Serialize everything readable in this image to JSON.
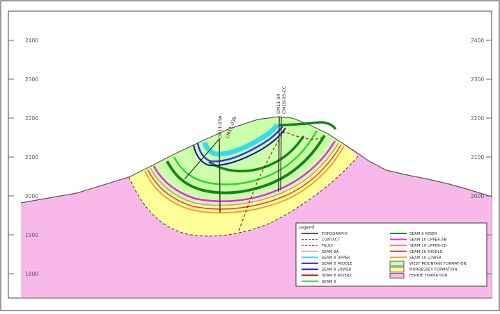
{
  "elevation_labels": [
    "2400",
    "2300",
    "2200",
    "2100",
    "2000",
    "1900",
    "1800"
  ],
  "drill_holes": [
    "CM11-03A",
    "CM11-03B",
    "CM11-04",
    "CM18-03-CC"
  ],
  "legend": {
    "title": "Legend",
    "left_items": [
      {
        "label": "TOPOGRAPHY",
        "symbol": "line",
        "color": "#555555"
      },
      {
        "label": "CONTACT",
        "symbol": "dashed",
        "color": "#333333"
      },
      {
        "label": "FAULT",
        "symbol": "dashed",
        "color": "#8b1a1a"
      },
      {
        "label": "SEAM 8A",
        "symbol": "line",
        "color": "#f4a6a6"
      },
      {
        "label": "SEAM 8 UPPER",
        "symbol": "line",
        "color": "#33ddee"
      },
      {
        "label": "SEAM 8 MIDDLE",
        "symbol": "line",
        "color": "#3333ff"
      },
      {
        "label": "SEAM 8 LOWER",
        "symbol": "line",
        "color": "#1010a0"
      },
      {
        "label": "SEAM 8 RIDER2",
        "symbol": "line",
        "color": "#b02020"
      },
      {
        "label": "SEAM 9",
        "symbol": "line",
        "color": "#22dd22"
      }
    ],
    "right_items": [
      {
        "label": "SEAM 9 RIDER",
        "symbol": "line",
        "color": "#118811"
      },
      {
        "label": "SEAM 10 UPPER-AB",
        "symbol": "line",
        "color": "#ee22ee"
      },
      {
        "label": "SEAM 10 UPPER-CD",
        "symbol": "line",
        "color": "#f08080"
      },
      {
        "label": "SEAM 10 MIDDLE",
        "symbol": "line",
        "color": "#ee3333"
      },
      {
        "label": "SEAM 10 LOWER",
        "symbol": "line",
        "color": "#f0a030"
      },
      {
        "label": "WEST MOUNTAIN FORMATION",
        "symbol": "box",
        "color": "#ccffaa"
      },
      {
        "label": "MORRESSEY FORMATION",
        "symbol": "box",
        "color": "#ffff99"
      },
      {
        "label": "FERNIE FORMATION",
        "symbol": "box",
        "color": "#f9b8ea"
      }
    ]
  },
  "colors": {
    "fernie": "#f9b8ea",
    "morrissey": "#ffff99",
    "west_mountain": "#ccffaa",
    "frame": "#333333"
  }
}
